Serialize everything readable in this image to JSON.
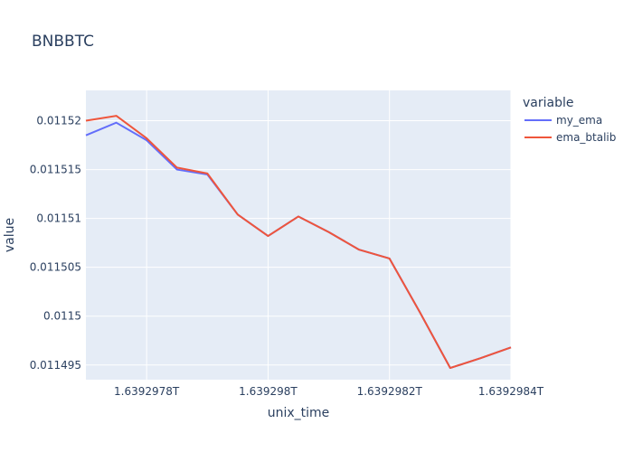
{
  "chart_data": {
    "type": "line",
    "title": "BNBBTC",
    "xlabel": "unix_time",
    "ylabel": "value",
    "legend_title": "variable",
    "legend_position": "right",
    "grid": true,
    "x": [
      1639297700000,
      1639297750000,
      1639297800000,
      1639297850000,
      1639297900000,
      1639297950000,
      1639298000000,
      1639298050000,
      1639298100000,
      1639298150000,
      1639298200000,
      1639298250000,
      1639298300000,
      1639298350000,
      1639298400000
    ],
    "xlim": [
      1639297700000,
      1639298400000
    ],
    "x_ticks": [
      {
        "value": 1639297800000,
        "label": "1.6392978T"
      },
      {
        "value": 1639298000000,
        "label": "1.639298T"
      },
      {
        "value": 1639298200000,
        "label": "1.6392982T"
      },
      {
        "value": 1639298400000,
        "label": "1.6392984T"
      }
    ],
    "ylim": [
      0.0114935,
      0.0115231
    ],
    "y_ticks": [
      {
        "value": 0.011495,
        "label": "0.011495"
      },
      {
        "value": 0.0115,
        "label": "0.0115"
      },
      {
        "value": 0.011505,
        "label": "0.011505"
      },
      {
        "value": 0.01151,
        "label": "0.01151"
      },
      {
        "value": 0.011515,
        "label": "0.011515"
      },
      {
        "value": 0.01152,
        "label": "0.01152"
      }
    ],
    "series": [
      {
        "name": "my_ema",
        "color": "#636efa",
        "values": [
          0.0115185,
          0.0115198,
          0.011518,
          0.011515,
          0.0115145,
          0.0115104,
          0.0115082,
          0.0115102,
          0.0115086,
          0.0115068,
          0.0115059,
          0.0115004,
          0.0114947,
          0.0114957,
          0.0114968
        ]
      },
      {
        "name": "ema_btalib",
        "color": "#ef553b",
        "values": [
          0.01152,
          0.0115205,
          0.0115182,
          0.0115152,
          0.0115146,
          0.0115104,
          0.0115082,
          0.0115102,
          0.0115086,
          0.0115068,
          0.0115059,
          0.0115004,
          0.0114947,
          0.0114957,
          0.0114968
        ]
      }
    ]
  }
}
